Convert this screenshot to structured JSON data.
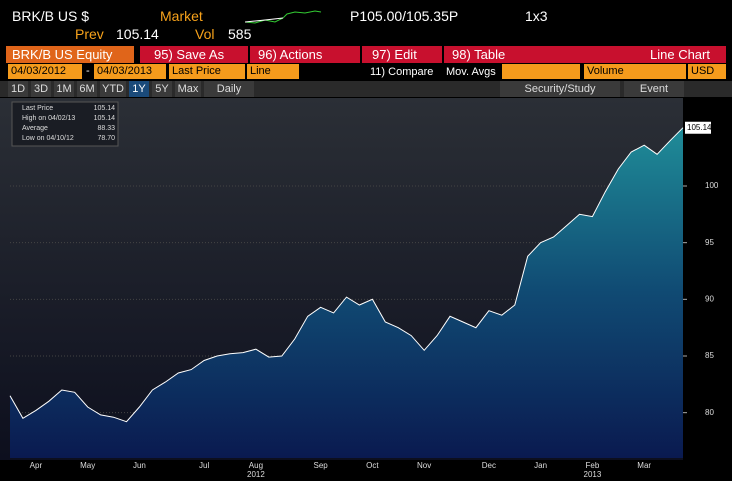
{
  "header": {
    "ticker": "BRK/B US $",
    "market_label": "Market",
    "quote": "P105.00/105.35P",
    "size": "1x3",
    "prev_label": "Prev",
    "prev_value": "105.14",
    "vol_label": "Vol",
    "vol_value": "585"
  },
  "toolbar": {
    "security": "BRK/B US Equity",
    "menus": [
      "95) Save As",
      "96) Actions",
      "97) Edit",
      "98) Table"
    ],
    "view": "Line Chart"
  },
  "settings": {
    "start_date": "04/03/2012",
    "separator": "-",
    "end_date": "04/03/2013",
    "field": "Last Price",
    "style": "Line",
    "compare": "11) Compare",
    "mov_avgs": "Mov. Avgs",
    "lower": "Volume",
    "currency": "USD"
  },
  "tabs": {
    "ranges": [
      "1D",
      "3D",
      "1M",
      "6M",
      "YTD",
      "1Y",
      "5Y",
      "Max"
    ],
    "period": "Daily",
    "study": "Security/Study",
    "event": "Event"
  },
  "legend": [
    [
      "Last Price",
      "105.14"
    ],
    [
      "High on 04/02/13",
      "105.14"
    ],
    [
      "Average",
      "88.33"
    ],
    [
      "Low on 04/10/12",
      "78.70"
    ]
  ],
  "chart_data": {
    "type": "area",
    "color": "#ffffff",
    "categories": [
      null,
      null,
      "Apr",
      null,
      null,
      null,
      "May",
      null,
      null,
      null,
      "Jun",
      null,
      null,
      null,
      null,
      "Jul",
      null,
      null,
      null,
      "Aug",
      null,
      null,
      null,
      null,
      "Sep",
      null,
      null,
      null,
      "Oct",
      null,
      null,
      null,
      "Nov",
      null,
      null,
      null,
      null,
      "Dec",
      null,
      null,
      null,
      "Jan",
      null,
      null,
      null,
      "Feb",
      null,
      null,
      null,
      "Mar",
      null,
      null,
      null
    ],
    "x_year_labels": [
      null,
      null,
      null,
      null,
      null,
      null,
      null,
      null,
      null,
      null,
      null,
      null,
      null,
      null,
      null,
      null,
      null,
      null,
      null,
      "2012",
      null,
      null,
      null,
      null,
      null,
      null,
      null,
      null,
      null,
      null,
      null,
      null,
      null,
      null,
      null,
      null,
      null,
      null,
      null,
      null,
      null,
      null,
      null,
      null,
      null,
      "2013",
      null,
      null,
      null,
      null,
      null,
      null,
      null
    ],
    "values": [
      81.5,
      79.5,
      80.2,
      81.0,
      82.0,
      81.8,
      80.5,
      79.8,
      79.6,
      79.2,
      80.5,
      82.0,
      82.7,
      83.5,
      83.8,
      84.6,
      85.0,
      85.2,
      85.3,
      85.6,
      84.9,
      85.0,
      86.5,
      88.5,
      89.3,
      88.8,
      90.2,
      89.5,
      90.0,
      88.0,
      87.5,
      86.8,
      85.5,
      86.8,
      88.5,
      88.0,
      87.5,
      89.0,
      88.6,
      89.5,
      93.8,
      95.0,
      95.5,
      96.5,
      97.5,
      97.3,
      99.5,
      101.5,
      103.0,
      103.6,
      102.8,
      104.0,
      105.14
    ],
    "ylim": [
      76,
      106
    ],
    "yticks": [
      80,
      85,
      90,
      95,
      100
    ],
    "grid": true
  }
}
